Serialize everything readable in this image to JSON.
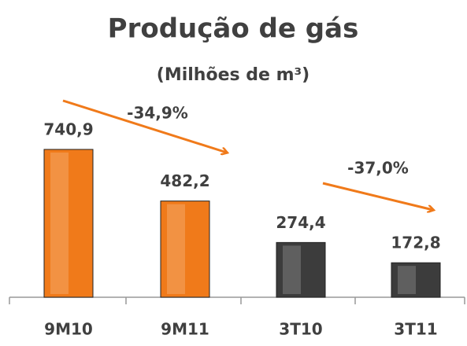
{
  "chart_data": {
    "type": "bar",
    "title": "Produção de gás",
    "subtitle": "(Milhões de m³)",
    "categories": [
      "9M10",
      "9M11",
      "3T10",
      "3T11"
    ],
    "values": [
      740.9,
      482.2,
      274.4,
      172.8
    ],
    "value_labels": [
      "740,9",
      "482,2",
      "274,4",
      "172,8"
    ],
    "colors": [
      "#f07a1a",
      "#f07a1a",
      "#3c3c3c",
      "#3c3c3c"
    ],
    "annotations": [
      {
        "text": "-34,9%"
      },
      {
        "text": "-37,0%"
      }
    ]
  }
}
